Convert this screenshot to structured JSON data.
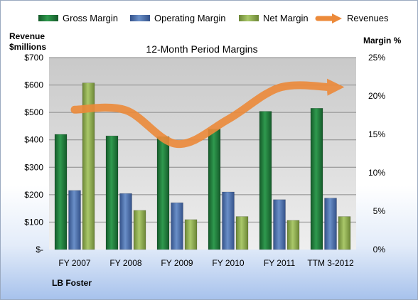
{
  "chart_data": {
    "type": "bar",
    "title": "12-Month Period Margins",
    "company": "LB Foster",
    "left_axis_label_line1": "Revenue",
    "left_axis_label_line2": "$millions",
    "right_axis_label": "Margin %",
    "categories": [
      "FY 2007",
      "FY 2008",
      "FY 2009",
      "FY 2010",
      "FY 2011",
      "TTM 3-2012"
    ],
    "left_ticks": [
      "$-",
      "$100",
      "$200",
      "$300",
      "$400",
      "$500",
      "$600",
      "$700"
    ],
    "right_ticks": [
      "0%",
      "5%",
      "10%",
      "15%",
      "20%",
      "25%"
    ],
    "ylim_left": [
      0,
      700
    ],
    "ylim_right": [
      0,
      25
    ],
    "grid": true,
    "legend_position": "top",
    "series": [
      {
        "name": "Gross Margin",
        "color": "#1f7a3a",
        "values": [
          15.0,
          14.8,
          14.7,
          15.7,
          18.0,
          18.4
        ]
      },
      {
        "name": "Operating Margin",
        "color": "#4a6fa8",
        "values": [
          7.7,
          7.3,
          6.1,
          7.5,
          6.5,
          6.7
        ]
      },
      {
        "name": "Net Margin",
        "color": "#8fab4e",
        "values": [
          21.7,
          5.1,
          3.9,
          4.3,
          3.8,
          4.3
        ]
      }
    ],
    "revenues": {
      "name": "Revenues",
      "color": "#ec8a3a",
      "values": [
        510,
        508,
        385,
        475,
        590,
        592
      ]
    }
  }
}
